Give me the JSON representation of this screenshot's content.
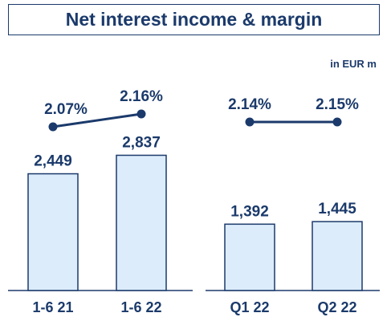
{
  "header": {
    "title": "Net interest income & margin",
    "unit": "in EUR m"
  },
  "colors": {
    "primary": "#1b3a6b",
    "bar_fill": "#dcecfb",
    "bar_stroke": "#1b3a6b"
  },
  "chart_data": [
    {
      "type": "bar",
      "categories": [
        "1-6 21",
        "1-6 22"
      ],
      "values": [
        2449,
        2837
      ],
      "value_labels": [
        "2,449",
        "2,837"
      ],
      "ylim": [
        0,
        3300
      ],
      "margin_line": {
        "values": [
          2.07,
          2.16
        ],
        "labels": [
          "2.07%",
          "2.16%"
        ]
      }
    },
    {
      "type": "bar",
      "categories": [
        "Q1 22",
        "Q2 22"
      ],
      "values": [
        1392,
        1445
      ],
      "value_labels": [
        "1,392",
        "1,445"
      ],
      "ylim": [
        0,
        3300
      ],
      "margin_line": {
        "values": [
          2.14,
          2.15
        ],
        "labels": [
          "2.14%",
          "2.15%"
        ]
      }
    }
  ]
}
